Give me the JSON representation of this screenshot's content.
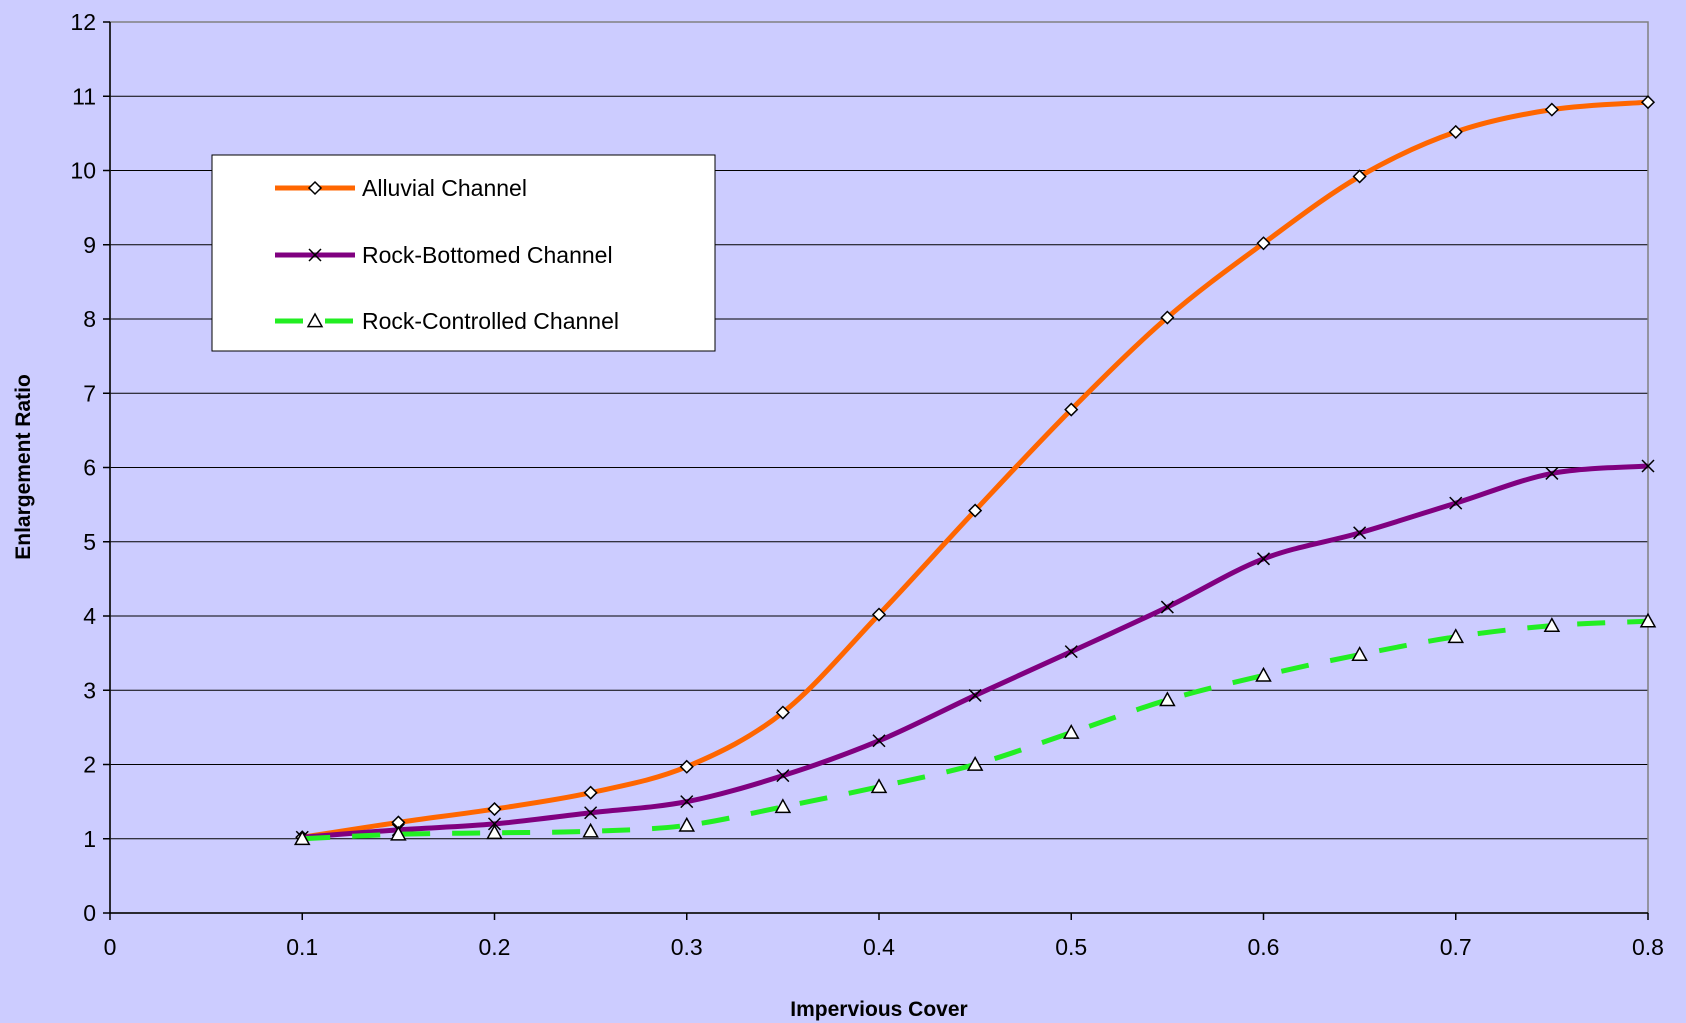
{
  "chart_data": {
    "type": "line",
    "xlabel": "Impervious Cover",
    "ylabel": "Enlargement Ratio",
    "xlim": [
      0,
      0.8
    ],
    "ylim": [
      0,
      12
    ],
    "x_ticks": [
      "0",
      "0.1",
      "0.2",
      "0.3",
      "0.4",
      "0.5",
      "0.6",
      "0.7",
      "0.8"
    ],
    "y_ticks": [
      "0",
      "1",
      "2",
      "3",
      "4",
      "5",
      "6",
      "7",
      "8",
      "9",
      "10",
      "11",
      "12"
    ],
    "grid": "horizontal",
    "legend_position": "top-left",
    "series": [
      {
        "name": "Alluvial Channel",
        "color": "#ff6600",
        "marker": "diamond",
        "dash": "solid",
        "x": [
          0.1,
          0.15,
          0.2,
          0.25,
          0.3,
          0.35,
          0.4,
          0.45,
          0.5,
          0.55,
          0.6,
          0.65,
          0.7,
          0.75,
          0.8
        ],
        "y": [
          1.02,
          1.22,
          1.4,
          1.62,
          1.97,
          2.7,
          4.02,
          5.42,
          6.78,
          8.02,
          9.02,
          9.92,
          10.52,
          10.82,
          10.92
        ]
      },
      {
        "name": "Rock-Bottomed Channel",
        "color": "#800080",
        "marker": "x",
        "dash": "solid",
        "x": [
          0.1,
          0.15,
          0.2,
          0.25,
          0.3,
          0.35,
          0.4,
          0.45,
          0.5,
          0.55,
          0.6,
          0.65,
          0.7,
          0.75,
          0.8
        ],
        "y": [
          1.02,
          1.12,
          1.2,
          1.35,
          1.5,
          1.85,
          2.32,
          2.93,
          3.52,
          4.12,
          4.77,
          5.12,
          5.52,
          5.92,
          6.02
        ]
      },
      {
        "name": "Rock-Controlled Channel",
        "color": "#22ee22",
        "marker": "triangle",
        "dash": "dashed",
        "x": [
          0.1,
          0.15,
          0.2,
          0.25,
          0.3,
          0.35,
          0.4,
          0.45,
          0.5,
          0.55,
          0.6,
          0.65,
          0.7,
          0.75,
          0.8
        ],
        "y": [
          1.0,
          1.06,
          1.08,
          1.1,
          1.18,
          1.43,
          1.7,
          2.0,
          2.43,
          2.87,
          3.2,
          3.48,
          3.72,
          3.87,
          3.93
        ]
      }
    ]
  }
}
